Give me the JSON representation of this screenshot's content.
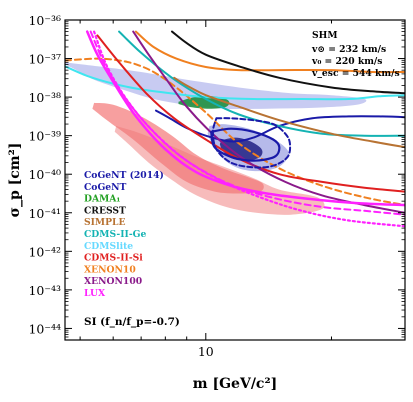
{
  "chart_data": {
    "type": "line",
    "xlabel": "m [GeV/c²]",
    "ylabel": "σ_p [cm²]",
    "xscale": "log",
    "yscale": "log",
    "xlim": [
      4.6,
      30
    ],
    "ylim": [
      -44.3,
      -36
    ],
    "x_tick_labels": [
      {
        "value": 10,
        "label": "10"
      }
    ],
    "y_tick_labels": [
      {
        "value": -36,
        "label": "10⁻³⁶"
      },
      {
        "value": -37,
        "label": "10⁻³⁷"
      },
      {
        "value": -38,
        "label": "10⁻³⁸"
      },
      {
        "value": -39,
        "label": "10⁻³⁹"
      },
      {
        "value": -40,
        "label": "10⁻⁴⁰"
      },
      {
        "value": -41,
        "label": "10⁻⁴¹"
      },
      {
        "value": -42,
        "label": "10⁻⁴²"
      },
      {
        "value": -43,
        "label": "10⁻⁴³"
      },
      {
        "value": -44,
        "label": "10⁻⁴⁴"
      }
    ],
    "annotations": {
      "model": "SHM",
      "v_sun": "v⊙ = 232 km/s",
      "v_0": "v₀ = 220 km/s",
      "v_esc": "v_esc = 544 km/s",
      "si_label": "SI (f_n/f_p=-0.7)"
    },
    "legend": [
      {
        "label": "CoGeNT (2014)",
        "color": "#1a1aa8"
      },
      {
        "label": "CoGeNT",
        "color": "#1a1aa8"
      },
      {
        "label": "DAMA₁",
        "color": "#22a022"
      },
      {
        "label": "CRESST",
        "color": "#111111"
      },
      {
        "label": "SIMPLE",
        "color": "#b87333"
      },
      {
        "label": "CDMS-II-Ge",
        "color": "#14b3b3"
      },
      {
        "label": "CDMSlite",
        "color": "#66d9ff"
      },
      {
        "label": "CDMS-II-Si",
        "color": "#e02020"
      },
      {
        "label": "XENON10",
        "color": "#f08020"
      },
      {
        "label": "XENON100",
        "color": "#8a1a8a"
      },
      {
        "label": "LUX",
        "color": "#ff22ff"
      }
    ],
    "regions": [
      {
        "name": "CRESST",
        "color": "#9aa0e8",
        "opacity": 0.55,
        "points": [
          [
            4.6,
            -37.1
          ],
          [
            5.5,
            -37.2
          ],
          [
            7,
            -37.35
          ],
          [
            9,
            -37.55
          ],
          [
            12,
            -37.75
          ],
          [
            16,
            -37.9
          ],
          [
            20,
            -37.95
          ],
          [
            24,
            -38.05
          ],
          [
            23,
            -38.2
          ],
          [
            18,
            -38.28
          ],
          [
            14,
            -38.3
          ],
          [
            11,
            -38.3
          ],
          [
            9,
            -38.2
          ],
          [
            7.5,
            -38.05
          ],
          [
            6.3,
            -37.8
          ],
          [
            5.4,
            -37.55
          ],
          [
            4.9,
            -37.3
          ],
          [
            4.6,
            -37.15
          ]
        ]
      },
      {
        "name": "CDMS-II-Si",
        "color": "#f05050",
        "opacity": 0.55,
        "points": [
          [
            5.4,
            -38.15
          ],
          [
            6,
            -38.2
          ],
          [
            7,
            -38.5
          ],
          [
            8.3,
            -39.0
          ],
          [
            9.5,
            -39.5
          ],
          [
            11,
            -39.85
          ],
          [
            12.8,
            -40.1
          ],
          [
            13.7,
            -40.25
          ],
          [
            13.5,
            -40.45
          ],
          [
            12,
            -40.5
          ],
          [
            10.5,
            -40.45
          ],
          [
            9,
            -40.2
          ],
          [
            7.8,
            -39.7
          ],
          [
            6.7,
            -39.1
          ],
          [
            5.8,
            -38.6
          ],
          [
            5.35,
            -38.3
          ]
        ]
      },
      {
        "name": "CDMS-II-Si",
        "color": "#f07878",
        "opacity": 0.5,
        "points": [
          [
            6.1,
            -38.75
          ],
          [
            7,
            -38.95
          ],
          [
            8.2,
            -39.25
          ],
          [
            9.5,
            -39.55
          ],
          [
            11,
            -39.8
          ],
          [
            13,
            -40.1
          ],
          [
            15,
            -40.4
          ],
          [
            18.5,
            -40.6
          ],
          [
            19,
            -40.9
          ],
          [
            16,
            -41.05
          ],
          [
            13.2,
            -41.0
          ],
          [
            11.2,
            -40.85
          ],
          [
            9.5,
            -40.55
          ],
          [
            8.3,
            -40.15
          ],
          [
            7.3,
            -39.7
          ],
          [
            6.5,
            -39.2
          ],
          [
            6.05,
            -38.9
          ]
        ]
      },
      {
        "name": "CoGeNT",
        "color": "#7a82d8",
        "opacity": 0.55,
        "points": [
          [
            10.2,
            -38.75
          ],
          [
            11,
            -38.7
          ],
          [
            12.5,
            -38.8
          ],
          [
            14,
            -39.0
          ],
          [
            15.3,
            -39.25
          ],
          [
            15.8,
            -39.5
          ],
          [
            15,
            -39.8
          ],
          [
            13.5,
            -39.92
          ],
          [
            12,
            -39.85
          ],
          [
            11,
            -39.6
          ],
          [
            10.4,
            -39.25
          ],
          [
            10.1,
            -38.95
          ]
        ]
      },
      {
        "name": "CoGeNT",
        "color": "#2a2a8a",
        "opacity": 0.9,
        "points": [
          [
            10.9,
            -39.12
          ],
          [
            11.8,
            -39.05
          ],
          [
            12.8,
            -39.15
          ],
          [
            13.6,
            -39.35
          ],
          [
            13.5,
            -39.55
          ],
          [
            12.6,
            -39.65
          ],
          [
            11.6,
            -39.6
          ],
          [
            11,
            -39.4
          ],
          [
            10.8,
            -39.22
          ]
        ]
      },
      {
        "name": "DAMA₁",
        "color": "#1f8f3f",
        "opacity": 0.9,
        "points": [
          [
            8.6,
            -38.12
          ],
          [
            9.4,
            -38.0
          ],
          [
            10.4,
            -37.98
          ],
          [
            11.3,
            -38.08
          ],
          [
            11.2,
            -38.25
          ],
          [
            10.2,
            -38.3
          ],
          [
            9.2,
            -38.26
          ],
          [
            8.6,
            -38.18
          ]
        ]
      }
    ],
    "curves": [
      {
        "name": "XENON10",
        "color": "#f08020",
        "width": 2,
        "dash": "6,4",
        "points": [
          [
            4.6,
            -37.05
          ],
          [
            5.5,
            -37.0
          ],
          [
            6.2,
            -37.05
          ],
          [
            6.8,
            -37.15
          ],
          [
            7.5,
            -37.35
          ],
          [
            8.5,
            -37.75
          ],
          [
            10,
            -38.4
          ],
          [
            12,
            -39.2
          ],
          [
            15,
            -39.85
          ],
          [
            19,
            -40.3
          ],
          [
            24,
            -40.6
          ],
          [
            30,
            -40.8
          ]
        ]
      },
      {
        "name": "XENON10",
        "color": "#f08020",
        "width": 2,
        "dash": "",
        "points": [
          [
            6.8,
            -36.3
          ],
          [
            7.5,
            -36.7
          ],
          [
            8.5,
            -37.0
          ],
          [
            10,
            -37.22
          ],
          [
            12,
            -37.3
          ],
          [
            15,
            -37.3
          ],
          [
            20,
            -37.3
          ],
          [
            25,
            -37.35
          ],
          [
            30,
            -37.35
          ]
        ]
      },
      {
        "name": "CDMSlite",
        "color": "#40e6f0",
        "width": 2,
        "dash": "",
        "points": [
          [
            4.6,
            -37.2
          ],
          [
            5.2,
            -37.45
          ],
          [
            6,
            -37.65
          ],
          [
            7,
            -37.8
          ],
          [
            8.5,
            -37.92
          ],
          [
            10,
            -38.0
          ],
          [
            13,
            -38.05
          ],
          [
            17,
            -38.05
          ],
          [
            22,
            -38.05
          ],
          [
            26,
            -37.98
          ],
          [
            30,
            -37.95
          ]
        ]
      },
      {
        "name": "CoGeNT (2014)",
        "color": "#1a1aa8",
        "width": 2,
        "dash": "",
        "points": [
          [
            7.6,
            -38.35
          ],
          [
            8.2,
            -38.55
          ],
          [
            9,
            -38.8
          ],
          [
            10,
            -39.0
          ],
          [
            11.5,
            -39.15
          ],
          [
            13,
            -39.05
          ],
          [
            15,
            -38.75
          ],
          [
            18,
            -38.55
          ],
          [
            22,
            -38.5
          ],
          [
            26,
            -38.5
          ],
          [
            30,
            -38.52
          ]
        ]
      },
      {
        "name": "CDMS-II-Ge",
        "color": "#14b3b3",
        "width": 2,
        "dash": "",
        "points": [
          [
            6.2,
            -36.3
          ],
          [
            7,
            -36.85
          ],
          [
            8.3,
            -37.5
          ],
          [
            10,
            -38.05
          ],
          [
            12,
            -38.45
          ],
          [
            15,
            -38.75
          ],
          [
            19,
            -38.95
          ],
          [
            24,
            -39.0
          ],
          [
            30,
            -39.0
          ]
        ]
      },
      {
        "name": "CRESST",
        "color": "#111111",
        "width": 2,
        "dash": "",
        "points": [
          [
            8.3,
            -36.3
          ],
          [
            9,
            -36.6
          ],
          [
            10,
            -36.9
          ],
          [
            12,
            -37.2
          ],
          [
            15,
            -37.5
          ],
          [
            20,
            -37.75
          ],
          [
            25,
            -37.85
          ],
          [
            30,
            -37.9
          ]
        ]
      },
      {
        "name": "SIMPLE",
        "color": "#b87333",
        "width": 2,
        "dash": "",
        "points": [
          [
            8.4,
            -37.5
          ],
          [
            9,
            -37.7
          ],
          [
            10,
            -37.95
          ],
          [
            12,
            -38.25
          ],
          [
            15,
            -38.6
          ],
          [
            20,
            -38.95
          ],
          [
            25,
            -39.15
          ],
          [
            30,
            -39.3
          ]
        ]
      },
      {
        "name": "CDMS-II-Si",
        "color": "#e02020",
        "width": 2,
        "dash": "",
        "points": [
          [
            5.5,
            -36.4
          ],
          [
            6.2,
            -37.1
          ],
          [
            7.2,
            -37.9
          ],
          [
            8.4,
            -38.55
          ],
          [
            10,
            -39.1
          ],
          [
            12,
            -39.6
          ],
          [
            15,
            -40.0
          ],
          [
            19,
            -40.2
          ],
          [
            24,
            -40.35
          ],
          [
            30,
            -40.45
          ]
        ]
      },
      {
        "name": "XENON100",
        "color": "#8a1a8a",
        "width": 2,
        "dash": "",
        "points": [
          [
            6.7,
            -36.3
          ],
          [
            7.3,
            -36.9
          ],
          [
            8,
            -37.5
          ],
          [
            9,
            -38.25
          ],
          [
            10.5,
            -39.0
          ],
          [
            12.5,
            -39.65
          ],
          [
            15.5,
            -40.2
          ],
          [
            19,
            -40.55
          ],
          [
            24,
            -40.8
          ],
          [
            30,
            -41.0
          ]
        ]
      },
      {
        "name": "LUX",
        "color": "#ff22ff",
        "width": 2.5,
        "dash": "",
        "points": [
          [
            5.2,
            -36.3
          ],
          [
            5.5,
            -36.9
          ],
          [
            6,
            -37.6
          ],
          [
            6.8,
            -38.5
          ],
          [
            8,
            -39.35
          ],
          [
            9.5,
            -39.95
          ],
          [
            11.5,
            -40.3
          ],
          [
            14,
            -40.5
          ],
          [
            18,
            -40.65
          ],
          [
            23,
            -40.75
          ],
          [
            30,
            -40.8
          ]
        ]
      },
      {
        "name": "LUX",
        "color": "#ff22ff",
        "width": 2,
        "dash": "6,4",
        "points": [
          [
            5.3,
            -36.3
          ],
          [
            5.7,
            -37.1
          ],
          [
            6.3,
            -37.9
          ],
          [
            7.2,
            -38.7
          ],
          [
            8.5,
            -39.45
          ],
          [
            10,
            -39.95
          ],
          [
            12,
            -40.35
          ],
          [
            15,
            -40.65
          ],
          [
            19,
            -40.85
          ],
          [
            24,
            -40.95
          ],
          [
            30,
            -41.05
          ]
        ]
      },
      {
        "name": "LUX",
        "color": "#ff22ff",
        "width": 2.2,
        "dash": "2,3",
        "points": [
          [
            5.4,
            -36.3
          ],
          [
            5.8,
            -37.2
          ],
          [
            6.5,
            -38.1
          ],
          [
            7.5,
            -38.9
          ],
          [
            9,
            -39.65
          ],
          [
            11,
            -40.2
          ],
          [
            13.5,
            -40.6
          ],
          [
            17,
            -40.95
          ],
          [
            22,
            -41.2
          ],
          [
            30,
            -41.35
          ]
        ]
      },
      {
        "name": "CoGeNT",
        "color": "#1a1aa8",
        "width": 2,
        "dash": "5,3",
        "points": [
          [
            10.6,
            -38.55
          ],
          [
            11.5,
            -38.55
          ],
          [
            13,
            -38.6
          ],
          [
            14.5,
            -38.7
          ],
          [
            15.5,
            -38.95
          ],
          [
            15.9,
            -39.2
          ],
          [
            15.7,
            -39.55
          ],
          [
            14.5,
            -39.78
          ],
          [
            13,
            -39.82
          ],
          [
            11.5,
            -39.7
          ],
          [
            10.6,
            -39.35
          ],
          [
            10.4,
            -38.9
          ],
          [
            10.6,
            -38.55
          ]
        ]
      },
      {
        "name": "CoGeNT",
        "color": "#1a1aa8",
        "width": 2.2,
        "dash": "",
        "points": [
          [
            10.3,
            -38.9
          ],
          [
            11.5,
            -38.82
          ],
          [
            13,
            -38.9
          ],
          [
            14.5,
            -39.1
          ],
          [
            15,
            -39.3
          ],
          [
            14.6,
            -39.55
          ],
          [
            13,
            -39.65
          ],
          [
            11.5,
            -39.55
          ],
          [
            10.5,
            -39.3
          ],
          [
            10.3,
            -38.9
          ]
        ]
      }
    ]
  }
}
